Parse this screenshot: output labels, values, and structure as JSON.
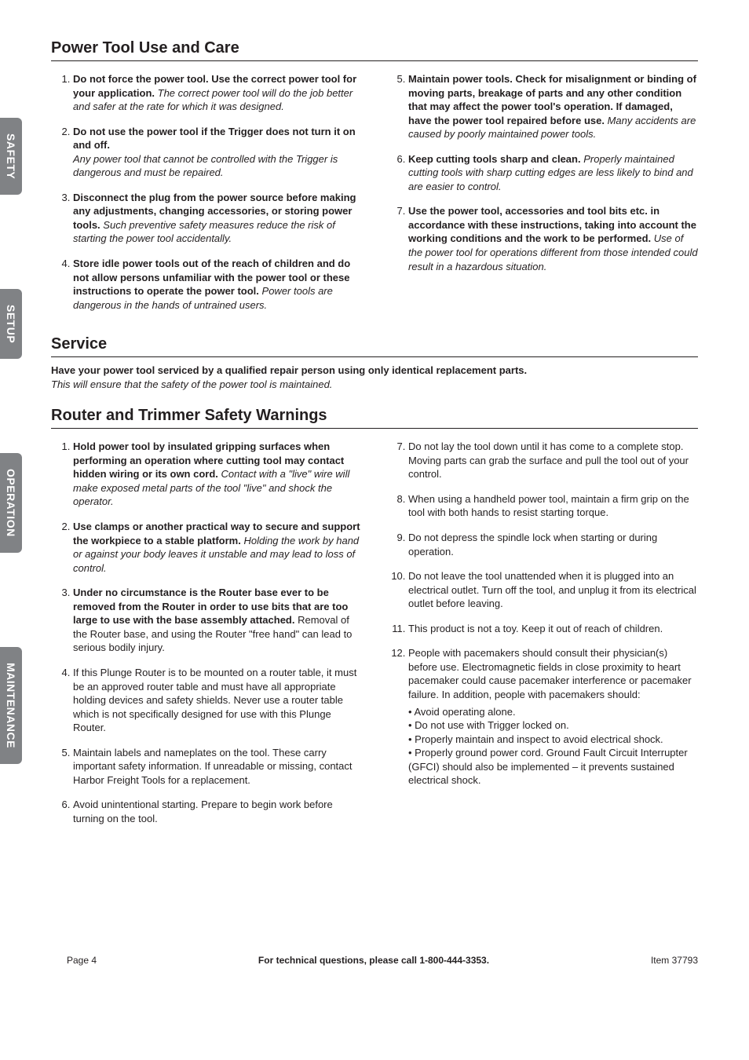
{
  "tabs": {
    "safety": "SAFETY",
    "setup": "SETUP",
    "operation": "OPERATION",
    "maintenance": "MAINTENANCE"
  },
  "section1": {
    "title": "Power Tool Use and Care",
    "left": [
      {
        "bold": "Do not force the power tool.  Use the correct power tool for your application.",
        "italic": "The correct power tool will do the job better and safer at the rate for which it was designed."
      },
      {
        "bold": "Do not use the power tool if the Trigger does not turn it on and off.",
        "italic": "Any power tool that cannot be controlled with the Trigger is dangerous and must be repaired."
      },
      {
        "bold": "Disconnect the plug from the power source before making any adjustments, changing accessories, or storing power tools.",
        "italic": "Such preventive safety measures reduce the risk of starting the power tool accidentally."
      },
      {
        "bold": "Store idle power tools out of the reach of children and do not allow persons unfamiliar with the power tool or these instructions to operate the power tool.",
        "italic": "Power tools are dangerous in the hands of untrained users."
      }
    ],
    "right": [
      {
        "bold": "Maintain power tools.  Check for misalignment or binding of moving parts, breakage of parts and any other condition that may affect the power tool's operation.  If damaged, have the power tool repaired before use.",
        "italic": "Many accidents are caused by poorly maintained power tools."
      },
      {
        "bold": "Keep cutting tools sharp and clean.",
        "italic": "Properly maintained cutting tools with sharp cutting edges are less likely to bind and are easier to control."
      },
      {
        "bold": "Use the power tool, accessories and tool bits etc. in accordance with these instructions, taking into account the working conditions and the work to be performed.",
        "italic": "Use of the power tool for operations different from those intended could result in a hazardous situation."
      }
    ]
  },
  "section2": {
    "title": "Service",
    "bold": "Have your power tool serviced by a qualified repair person using only identical replacement parts.",
    "italic": "This will ensure that the safety of the power tool is maintained."
  },
  "section3": {
    "title": "Router and Trimmer Safety Warnings",
    "left": [
      {
        "bold": "Hold power tool by insulated gripping surfaces when performing an operation where cutting tool may contact hidden wiring or its own cord.",
        "italic": "Contact with a \"live\" wire will make exposed metal parts of the tool \"live\" and shock the operator."
      },
      {
        "bold": "Use clamps or another practical way to secure and support the workpiece to a stable platform.",
        "italic": "Holding the work by hand or against your body leaves it unstable and may lead to loss of control."
      },
      {
        "bold": "Under no circumstance is the Router base ever to be removed from the Router in order to use bits that are too large to use with the base assembly attached.",
        "plain": "Removal of the Router base, and using the Router \"free hand\" can lead to serious bodily injury."
      },
      {
        "plain": "If this Plunge Router is to be mounted on a router table, it must be an approved router table and must have all appropriate holding devices and safety shields.  Never use a router table which is not specifically designed for use with this Plunge Router."
      },
      {
        "plain": "Maintain labels and nameplates on the tool.  These carry important safety information.  If unreadable or missing, contact Harbor Freight Tools for a replacement."
      },
      {
        "plain": "Avoid unintentional starting.  Prepare to begin work before turning on the tool."
      }
    ],
    "right": [
      {
        "plain": "Do not lay the tool down until it has come to a complete stop.  Moving parts can grab the surface and pull the tool out of your control."
      },
      {
        "plain": "When using a handheld power tool, maintain a firm grip on the tool with both hands to resist starting torque."
      },
      {
        "plain": "Do not depress the spindle lock when starting or during operation."
      },
      {
        "plain": "Do not leave the tool unattended when it is plugged into an electrical outlet.  Turn off the tool, and unplug it from its electrical outlet before leaving."
      },
      {
        "plain": "This product is not a toy.  Keep it out of reach of children."
      },
      {
        "plain": "People with pacemakers should consult their physician(s) before use.  Electromagnetic fields in close proximity to heart pacemaker could cause pacemaker interference or pacemaker failure.  In addition, people with pacemakers should:",
        "bullets": [
          "• Avoid operating alone.",
          "• Do not use with Trigger locked on.",
          "• Properly maintain and inspect to avoid electrical shock.",
          "• Properly ground power cord.  Ground Fault Circuit Interrupter (GFCI) should also be implemented – it prevents sustained electrical shock."
        ]
      }
    ]
  },
  "footer": {
    "left": "Page 4",
    "center": "For technical questions, please call 1-800-444-3353.",
    "right": "Item 37793"
  }
}
